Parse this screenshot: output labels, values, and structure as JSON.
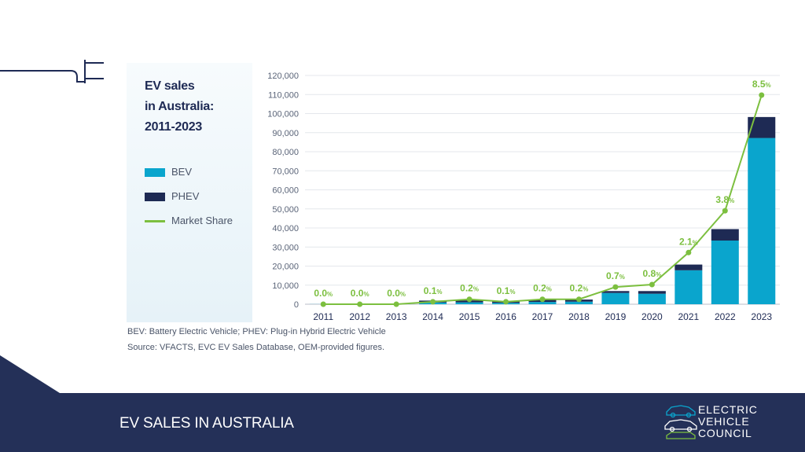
{
  "chart_data": {
    "type": "bar",
    "title": "EV sales in Australia: 2011-2023",
    "title_lines": [
      "EV sales",
      "in Australia:",
      "2011-2023"
    ],
    "categories": [
      "2011",
      "2012",
      "2013",
      "2014",
      "2015",
      "2016",
      "2017",
      "2018",
      "2019",
      "2020",
      "2021",
      "2022",
      "2023"
    ],
    "stacked": true,
    "series": [
      {
        "name": "BEV",
        "color": "#0aa5cd",
        "values": [
          50,
          250,
          200,
          900,
          1000,
          700,
          1200,
          1350,
          5900,
          5500,
          17800,
          33400,
          87200
        ]
      },
      {
        "name": "PHEV",
        "color": "#1e2a54",
        "values": [
          0,
          0,
          100,
          1000,
          1000,
          700,
          1200,
          1100,
          1000,
          1400,
          3000,
          6000,
          11000
        ]
      }
    ],
    "line_series": {
      "name": "Market Share",
      "color": "#7cbf3f",
      "values": [
        0.0,
        0.0,
        0.0,
        0.1,
        0.2,
        0.1,
        0.2,
        0.2,
        0.7,
        0.8,
        2.1,
        3.8,
        8.5
      ],
      "labels": [
        "0.0",
        "0.0",
        "0.0",
        "0.1",
        "0.2",
        "0.1",
        "0.2",
        "0.2",
        "0.7",
        "0.8",
        "2.1",
        "3.8",
        "8.5"
      ],
      "unit": "%"
    },
    "y_ticks": [
      "0",
      "10,000",
      "20,000",
      "30,000",
      "40,000",
      "50,000",
      "60,000",
      "70,000",
      "80,000",
      "90,000",
      "100,000",
      "110,000",
      "120,000"
    ],
    "ylim": [
      0,
      120000
    ],
    "grid": true,
    "legend_position": "left"
  },
  "legend": {
    "bev": "BEV",
    "phev": "PHEV",
    "share": "Market Share"
  },
  "colors": {
    "bev": "#0aa5cd",
    "phev": "#1e2a54",
    "share": "#7cbf3f",
    "footer": "#243058"
  },
  "notes": {
    "definitions": "BEV: Battery Electric Vehicle; PHEV: Plug-in Hybrid Electric Vehicle",
    "source": "Source: VFACTS, EVC EV Sales Database, OEM-provided figures."
  },
  "footer": {
    "title": "EV SALES IN AUSTRALIA"
  },
  "logo": {
    "lines": [
      "ELECTRIC",
      "VEHICLE",
      "COUNCIL"
    ]
  }
}
